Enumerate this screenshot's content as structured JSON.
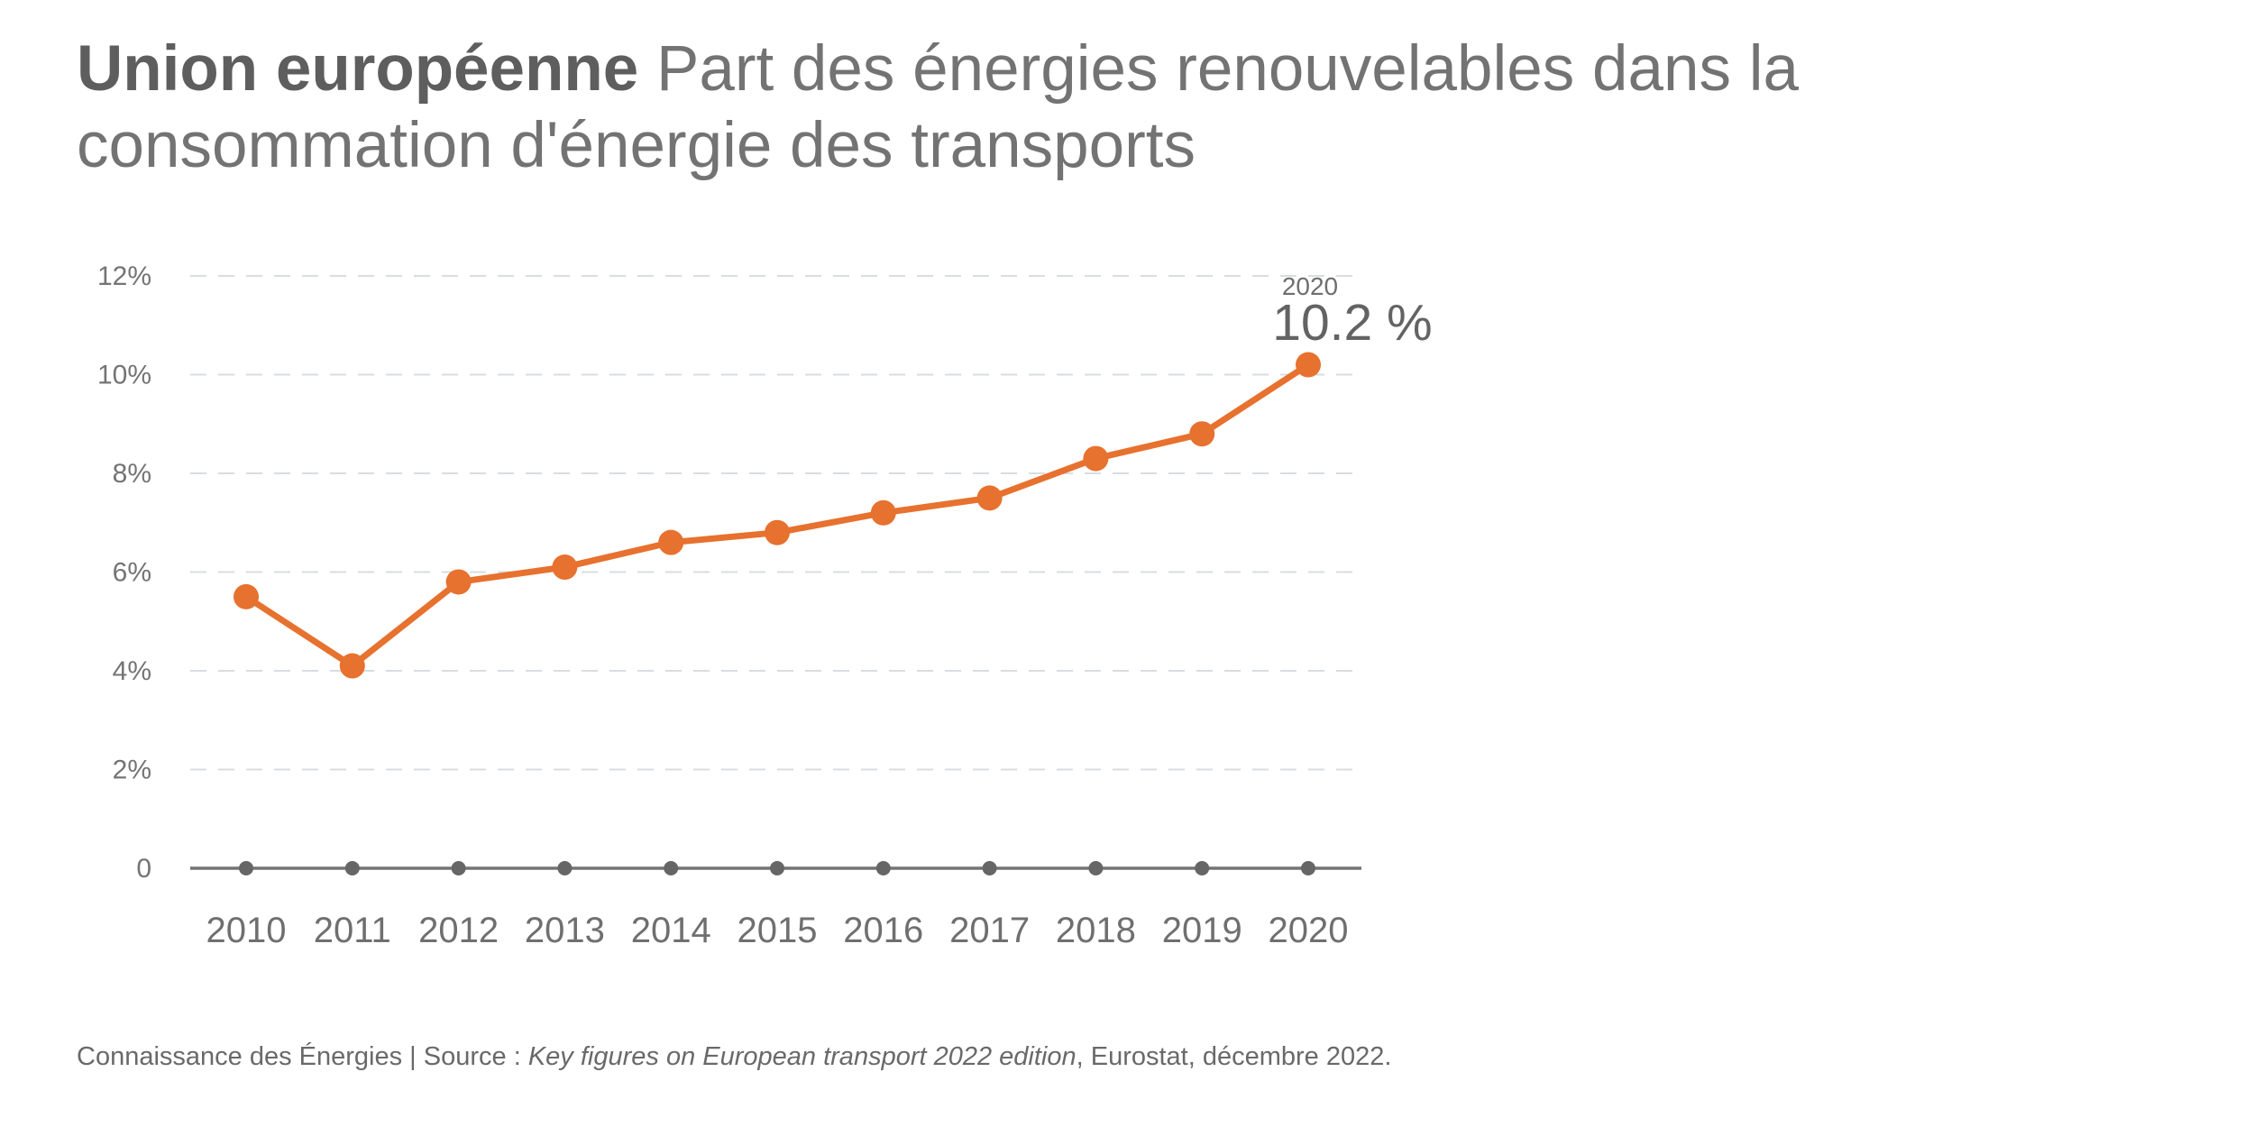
{
  "header": {
    "title_bold": "Union européenne",
    "title_rest": " Part des énergies renouvelables dans la consommation d'énergie des transports"
  },
  "chart_data": {
    "type": "line",
    "title": "Union européenne — Part des énergies renouvelables dans la consommation d'énergie des transports",
    "categories": [
      "2010",
      "2011",
      "2012",
      "2013",
      "2014",
      "2015",
      "2016",
      "2017",
      "2018",
      "2019",
      "2020"
    ],
    "series": [
      {
        "name": "Part des énergies renouvelables dans la consommation d'énergie des transports (%)",
        "values": [
          5.5,
          4.1,
          5.8,
          6.1,
          6.6,
          6.8,
          7.2,
          7.5,
          8.3,
          8.8,
          10.2
        ]
      }
    ],
    "ylim": [
      0,
      12
    ],
    "y_ticks": [
      {
        "value": 12,
        "label": "12%"
      },
      {
        "value": 10,
        "label": "10%"
      },
      {
        "value": 8,
        "label": "8%"
      },
      {
        "value": 6,
        "label": "6%"
      },
      {
        "value": 4,
        "label": "4%"
      },
      {
        "value": 2,
        "label": "2%"
      },
      {
        "value": 0,
        "label": "0"
      }
    ],
    "grid": "horizontal-dashed",
    "legend": "none",
    "annotation": {
      "year_label": "2020",
      "value_label": "10.2 %"
    },
    "colors": {
      "line": "#E7712E",
      "marker": "#E7712E",
      "grid": "#D7DDE2",
      "axis": "#747474",
      "axis_dot": "#666666",
      "x_tick_text": "#6F6F6F",
      "y_tick_text": "#747474",
      "annotation_year": "#6E6E6E",
      "annotation_value": "#636363",
      "title_bold": "#5E5E5E",
      "title_regular": "#737373",
      "footer_text": "#696969",
      "background": "#FFFFFF"
    }
  },
  "footer": {
    "prefix": "Connaissance des Énergies | Source : ",
    "source_italic": "Key figures on European transport 2022 edition",
    "suffix": ", Eurostat, décembre 2022."
  }
}
